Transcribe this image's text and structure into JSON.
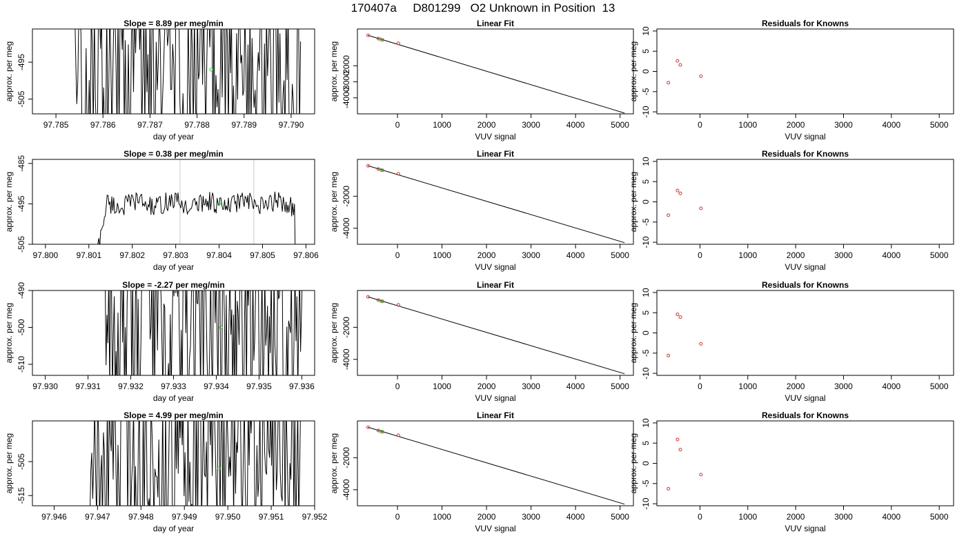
{
  "title": "170407a     D801299   O2 Unknown in Position  13",
  "colors": {
    "line": "#000000",
    "green": "#33cc33",
    "known": "#cc3333",
    "vline": "#c8c8c8"
  },
  "chart_data": [
    {
      "type": "line",
      "panel": "r1-c1",
      "title": "Slope =  8.89  per meg/min",
      "xlabel": "day of year",
      "ylabel": "approx. per meg",
      "xlim": [
        97.7845,
        97.7905
      ],
      "ylim": [
        -509,
        -486
      ],
      "xticks": [
        "97.785",
        "97.786",
        "97.787",
        "97.788",
        "97.789",
        "97.790"
      ],
      "yticks": [
        "-495",
        "-505"
      ],
      "x_start": 97.7854,
      "x_end": 97.7902,
      "mode": "wild",
      "green_point": [
        97.7883,
        -497
      ],
      "vlines": []
    },
    {
      "type": "line",
      "panel": "r2-c1",
      "title": "Slope =  0.38  per meg/min",
      "xlabel": "day of year",
      "ylabel": "approx. per meg",
      "xlim": [
        97.7997,
        97.8062
      ],
      "ylim": [
        -505,
        -484
      ],
      "xticks": [
        "97.800",
        "97.801",
        "97.802",
        "97.803",
        "97.804",
        "97.805",
        "97.806"
      ],
      "yticks": [
        "-485",
        "-495",
        "-505"
      ],
      "x_start": 97.8011,
      "x_end": 97.8058,
      "mode": "calm",
      "green_point": [
        97.804,
        -495
      ],
      "vlines": [
        97.8031,
        97.8048
      ]
    },
    {
      "type": "line",
      "panel": "r3-c1",
      "title": "Slope =  -2.27  per meg/min",
      "xlabel": "day of year",
      "ylabel": "approx. per meg",
      "xlim": [
        97.9297,
        97.9363
      ],
      "ylim": [
        -513,
        -490
      ],
      "xticks": [
        "97.930",
        "97.931",
        "97.932",
        "97.933",
        "97.934",
        "97.935",
        "97.936"
      ],
      "yticks": [
        "-490",
        "-500",
        "-510"
      ],
      "x_start": 97.9314,
      "x_end": 97.9361,
      "mode": "wild",
      "green_point": [
        97.9341,
        -500
      ],
      "vlines": []
    },
    {
      "type": "line",
      "panel": "r4-c1",
      "title": "Slope =  4.99  per meg/min",
      "xlabel": "day of year",
      "ylabel": "approx. per meg",
      "xlim": [
        97.9455,
        97.952
      ],
      "ylim": [
        -518,
        -493
      ],
      "xticks": [
        "97.946",
        "97.947",
        "97.948",
        "97.949",
        "97.950",
        "97.951",
        "97.952"
      ],
      "yticks": [
        "-505",
        "-515"
      ],
      "x_start": 97.9468,
      "x_end": 97.9517,
      "mode": "wild",
      "green_point": [
        97.9498,
        -507
      ],
      "vlines": []
    },
    {
      "type": "scatter",
      "panel": "r1-c2",
      "title": "Linear Fit",
      "xlabel": "VUV signal",
      "ylabel": "approx. per meg",
      "xlim": [
        -900,
        5300
      ],
      "ylim": [
        -5000,
        300
      ],
      "xticks": [
        0,
        1000,
        2000,
        3000,
        4000,
        5000
      ],
      "yticks": [
        -2000,
        -3000,
        -4000
      ],
      "fit_line": [
        [
          -660,
          -100
        ],
        [
          5100,
          -4950
        ]
      ],
      "knowns": [
        [
          -660,
          -100
        ],
        [
          -430,
          -300
        ],
        [
          -340,
          -380
        ],
        [
          20,
          -600
        ]
      ],
      "unknown": [
        -380,
        -350
      ]
    },
    {
      "type": "scatter",
      "panel": "r2-c2",
      "title": "Linear Fit",
      "xlabel": "VUV signal",
      "ylabel": "approx. per meg",
      "xlim": [
        -900,
        5300
      ],
      "ylim": [
        -5000,
        300
      ],
      "xticks": [
        0,
        1000,
        2000,
        3000,
        4000,
        5000
      ],
      "yticks": [
        -2000,
        -4000
      ],
      "fit_line": [
        [
          -660,
          -100
        ],
        [
          5100,
          -4900
        ]
      ],
      "knowns": [
        [
          -660,
          -100
        ],
        [
          -430,
          -300
        ],
        [
          -340,
          -380
        ],
        [
          20,
          -600
        ]
      ],
      "unknown": [
        -370,
        -360
      ]
    },
    {
      "type": "scatter",
      "panel": "r3-c2",
      "title": "Linear Fit",
      "xlabel": "VUV signal",
      "ylabel": "approx. per meg",
      "xlim": [
        -900,
        5300
      ],
      "ylim": [
        -5000,
        300
      ],
      "xticks": [
        0,
        1000,
        2000,
        3000,
        4000,
        5000
      ],
      "yticks": [
        -2000,
        -4000
      ],
      "fit_line": [
        [
          -660,
          -100
        ],
        [
          5100,
          -4900
        ]
      ],
      "knowns": [
        [
          -660,
          -100
        ],
        [
          -430,
          -300
        ],
        [
          -340,
          -380
        ],
        [
          20,
          -600
        ]
      ],
      "unknown": [
        -370,
        -360
      ]
    },
    {
      "type": "scatter",
      "panel": "r4-c2",
      "title": "Linear Fit",
      "xlabel": "VUV signal",
      "ylabel": "approx. per meg",
      "xlim": [
        -900,
        5300
      ],
      "ylim": [
        -5000,
        300
      ],
      "xticks": [
        0,
        1000,
        2000,
        3000,
        4000,
        5000
      ],
      "yticks": [
        -2000,
        -4000
      ],
      "fit_line": [
        [
          -660,
          -100
        ],
        [
          5100,
          -4900
        ]
      ],
      "knowns": [
        [
          -660,
          -100
        ],
        [
          -430,
          -300
        ],
        [
          -340,
          -380
        ],
        [
          20,
          -600
        ]
      ],
      "unknown": [
        -370,
        -360
      ]
    },
    {
      "type": "scatter",
      "panel": "r1-c3",
      "title": "Residuals for Knowns",
      "xlabel": "VUV signal",
      "ylabel": "approx. per meg",
      "xlim": [
        -900,
        5300
      ],
      "ylim": [
        -10.5,
        10.5
      ],
      "xticks": [
        0,
        1000,
        2000,
        3000,
        4000,
        5000
      ],
      "yticks": [
        -10,
        -5,
        0,
        5,
        10
      ],
      "points": [
        [
          -660,
          -2.8
        ],
        [
          -470,
          2.6
        ],
        [
          -410,
          1.6
        ],
        [
          20,
          -1.2
        ]
      ]
    },
    {
      "type": "scatter",
      "panel": "r2-c3",
      "title": "Residuals for Knowns",
      "xlabel": "VUV signal",
      "ylabel": "approx. per meg",
      "xlim": [
        -900,
        5300
      ],
      "ylim": [
        -10.5,
        10.5
      ],
      "xticks": [
        0,
        1000,
        2000,
        3000,
        4000,
        5000
      ],
      "yticks": [
        -10,
        -5,
        0,
        5,
        10
      ],
      "points": [
        [
          -660,
          -3.3
        ],
        [
          -470,
          2.8
        ],
        [
          -410,
          2.1
        ],
        [
          20,
          -1.6
        ]
      ]
    },
    {
      "type": "scatter",
      "panel": "r3-c3",
      "title": "Residuals for Knowns",
      "xlabel": "VUV signal",
      "ylabel": "approx. per meg",
      "xlim": [
        -900,
        5300
      ],
      "ylim": [
        -10.5,
        10.5
      ],
      "xticks": [
        0,
        1000,
        2000,
        3000,
        4000,
        5000
      ],
      "yticks": [
        -10,
        -5,
        0,
        5,
        10
      ],
      "points": [
        [
          -660,
          -5.6
        ],
        [
          -470,
          4.6
        ],
        [
          -410,
          3.9
        ],
        [
          20,
          -2.7
        ]
      ]
    },
    {
      "type": "scatter",
      "panel": "r4-c3",
      "title": "Residuals for Knowns",
      "xlabel": "VUV signal",
      "ylabel": "approx. per meg",
      "xlim": [
        -900,
        5300
      ],
      "ylim": [
        -10.5,
        10.5
      ],
      "xticks": [
        0,
        1000,
        2000,
        3000,
        4000,
        5000
      ],
      "yticks": [
        -10,
        -5,
        0,
        5,
        10
      ],
      "points": [
        [
          -660,
          -6.3
        ],
        [
          -470,
          5.9
        ],
        [
          -410,
          3.4
        ],
        [
          20,
          -2.8
        ]
      ]
    }
  ]
}
